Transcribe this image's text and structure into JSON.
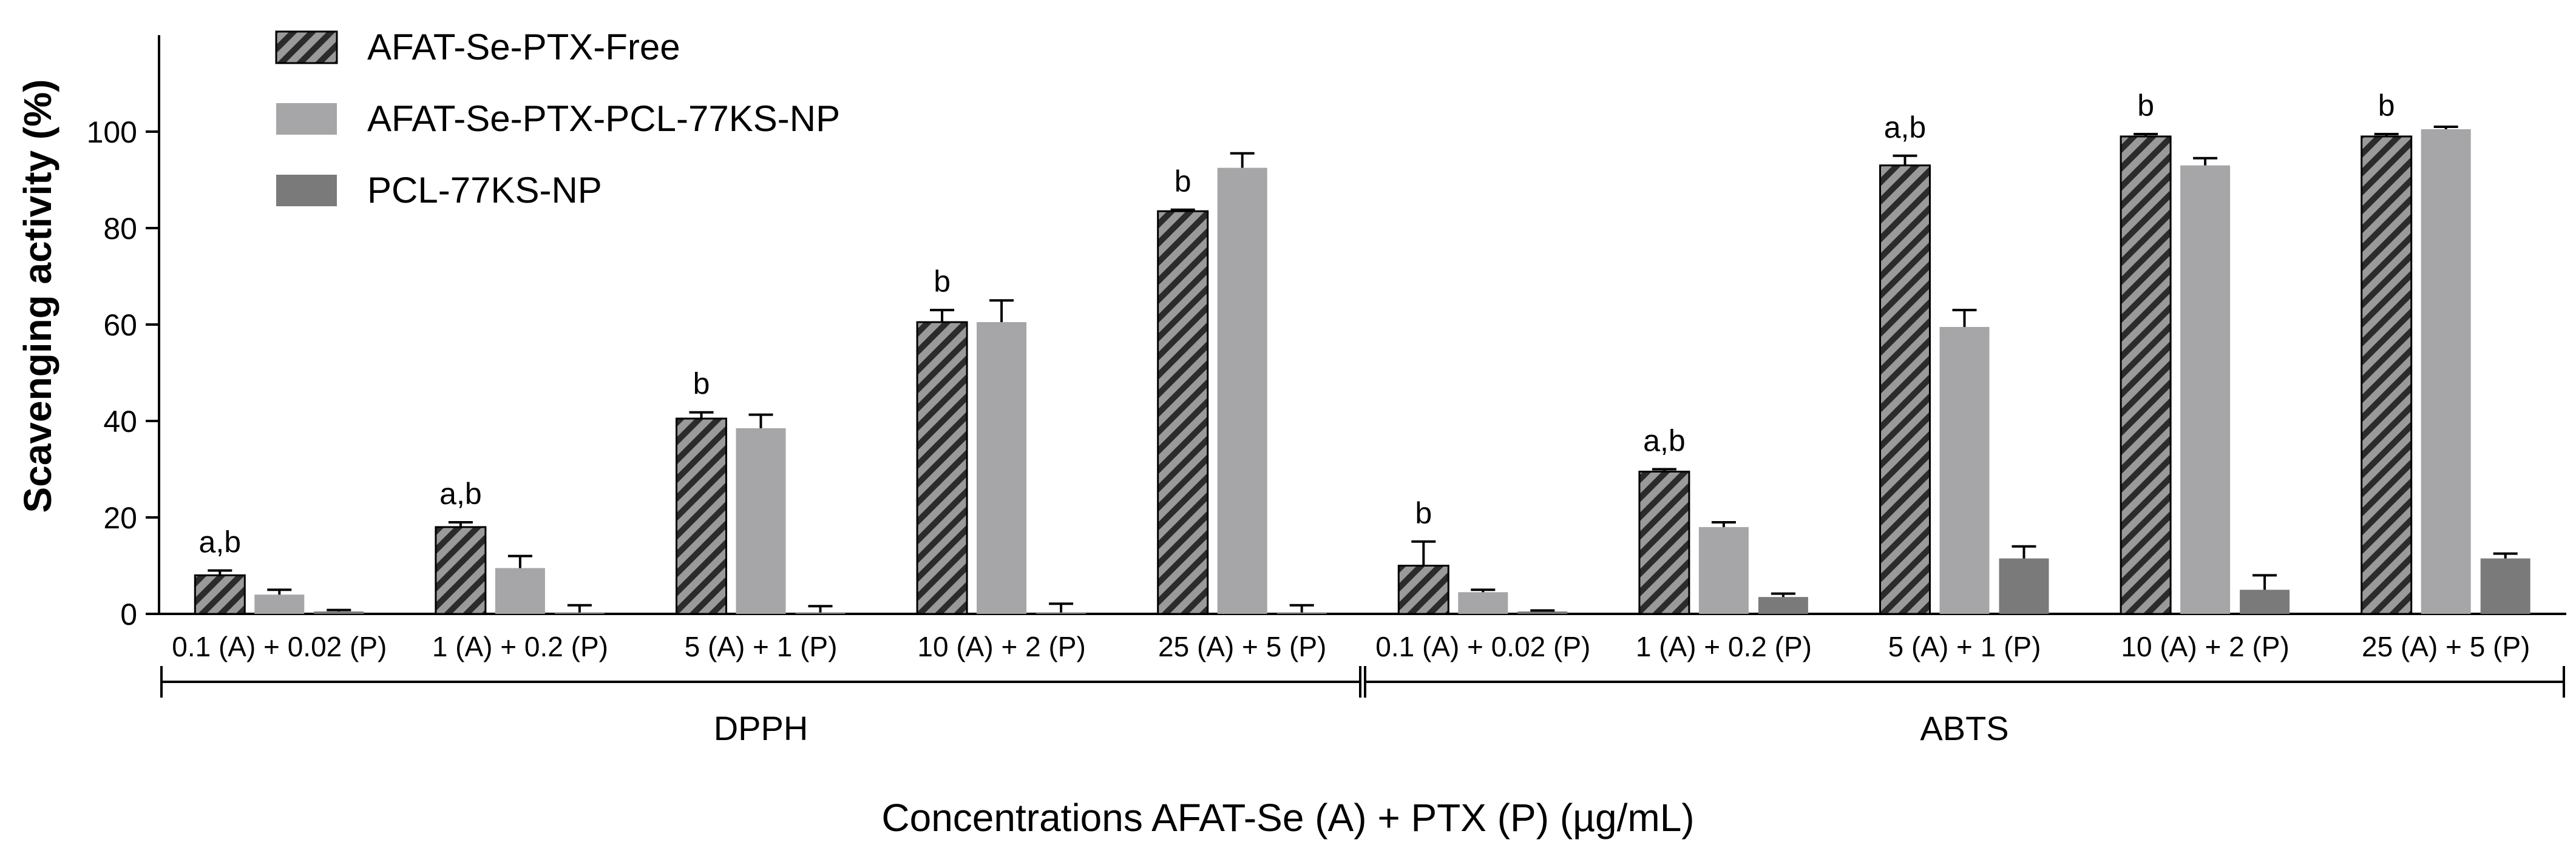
{
  "chart_data": {
    "type": "bar",
    "ylabel": "Scavenging activity (%)",
    "xlabel": "Concentrations AFAT-Se (A) + PTX (P) (µg/mL)",
    "ylim": [
      0,
      120
    ],
    "yticks": [
      0,
      20,
      40,
      60,
      80,
      100
    ],
    "groups": [
      "DPPH",
      "ABTS"
    ],
    "categories": [
      "0.1 (A) + 0.02 (P)",
      "1 (A) + 0.2 (P)",
      "5 (A) + 1 (P)",
      "10 (A) + 2 (P)",
      "25 (A) + 5 (P)",
      "0.1 (A) + 0.02 (P)",
      "1 (A) + 0.2 (P)",
      "5 (A) + 1 (P)",
      "10 (A) + 2 (P)",
      "25 (A) + 5 (P)"
    ],
    "category_group": [
      0,
      0,
      0,
      0,
      0,
      1,
      1,
      1,
      1,
      1
    ],
    "series": [
      {
        "name": "AFAT-Se-PTX-Free",
        "color": "#8a8a8a",
        "pattern": "hatch",
        "values": [
          8,
          18,
          40.5,
          60.5,
          83.5,
          10,
          29.5,
          93,
          99,
          99
        ],
        "errors": [
          1,
          1,
          1.3,
          2.5,
          0.3,
          5,
          0.5,
          2,
          0.5,
          0.5
        ],
        "annotations": [
          "a,b",
          "a,b",
          "b",
          "b",
          "b",
          "b",
          "a,b",
          "a,b",
          "b",
          "b"
        ]
      },
      {
        "name": "AFAT-Se-PTX-PCL-77KS-NP",
        "color": "#a6a6a8",
        "pattern": "solid",
        "values": [
          4,
          9.5,
          38.5,
          60.5,
          92.5,
          4.5,
          18,
          59.5,
          93,
          100.5
        ],
        "errors": [
          1,
          2.5,
          2.8,
          4.5,
          3,
          0.5,
          1,
          3.5,
          1.5,
          0.5
        ],
        "annotations": []
      },
      {
        "name": "PCL-77KS-NP",
        "color": "#7a7a7a",
        "pattern": "solid",
        "values": [
          0.5,
          0.3,
          0.3,
          0.3,
          0.3,
          0.5,
          3.5,
          11.5,
          5,
          11.5
        ],
        "errors": [
          0.3,
          1.5,
          1.3,
          1.8,
          1.5,
          0.2,
          0.7,
          2.5,
          3,
          1
        ],
        "annotations": []
      }
    ]
  }
}
